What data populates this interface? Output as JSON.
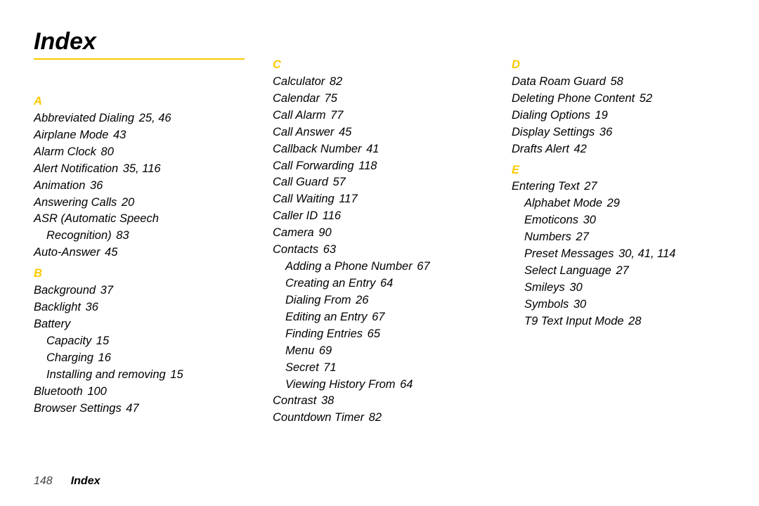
{
  "title": "Index",
  "rule_color": "#fbc900",
  "columns": [
    [
      {
        "type": "letter",
        "text": "A"
      },
      {
        "type": "entry",
        "text": "Abbreviated Dialing",
        "pages": "25, 46"
      },
      {
        "type": "entry",
        "text": "Airplane Mode",
        "pages": "43"
      },
      {
        "type": "entry",
        "text": "Alarm Clock",
        "pages": "80"
      },
      {
        "type": "entry",
        "text": "Alert Notification",
        "pages": "35, 116"
      },
      {
        "type": "entry",
        "text": "Animation",
        "pages": "36"
      },
      {
        "type": "entry",
        "text": "Answering Calls",
        "pages": "20"
      },
      {
        "type": "entry",
        "text": "ASR (Automatic Speech"
      },
      {
        "type": "entry",
        "indent": 1,
        "text": "Recognition)",
        "pages": "83"
      },
      {
        "type": "entry",
        "text": "Auto-Answer",
        "pages": "45"
      },
      {
        "type": "letter",
        "text": "B"
      },
      {
        "type": "entry",
        "text": "Background",
        "pages": "37"
      },
      {
        "type": "entry",
        "text": "Backlight",
        "pages": "36"
      },
      {
        "type": "entry",
        "text": "Battery"
      },
      {
        "type": "entry",
        "indent": 1,
        "text": "Capacity",
        "pages": "15"
      },
      {
        "type": "entry",
        "indent": 1,
        "text": "Charging",
        "pages": "16"
      },
      {
        "type": "entry",
        "indent": 1,
        "text": "Installing and removing",
        "pages": "15"
      },
      {
        "type": "entry",
        "text": "Bluetooth",
        "pages": "100"
      },
      {
        "type": "entry",
        "text": "Browser Settings",
        "pages": "47"
      }
    ],
    [
      {
        "type": "letter",
        "text": "C"
      },
      {
        "type": "entry",
        "text": "Calculator",
        "pages": "82"
      },
      {
        "type": "entry",
        "text": "Calendar",
        "pages": "75"
      },
      {
        "type": "entry",
        "text": "Call Alarm",
        "pages": "77"
      },
      {
        "type": "entry",
        "text": "Call Answer",
        "pages": "45"
      },
      {
        "type": "entry",
        "text": "Callback Number",
        "pages": "41"
      },
      {
        "type": "entry",
        "text": "Call Forwarding",
        "pages": "118"
      },
      {
        "type": "entry",
        "text": "Call Guard",
        "pages": "57"
      },
      {
        "type": "entry",
        "text": "Call Waiting",
        "pages": "117"
      },
      {
        "type": "entry",
        "text": "Caller ID",
        "pages": "116"
      },
      {
        "type": "entry",
        "text": "Camera",
        "pages": "90"
      },
      {
        "type": "entry",
        "text": "Contacts",
        "pages": "63"
      },
      {
        "type": "entry",
        "indent": 1,
        "text": "Adding a Phone Number",
        "pages": "67"
      },
      {
        "type": "entry",
        "indent": 1,
        "text": "Creating an Entry",
        "pages": "64"
      },
      {
        "type": "entry",
        "indent": 1,
        "text": "Dialing From",
        "pages": "26"
      },
      {
        "type": "entry",
        "indent": 1,
        "text": "Editing an Entry",
        "pages": "67"
      },
      {
        "type": "entry",
        "indent": 1,
        "text": "Finding Entries",
        "pages": "65"
      },
      {
        "type": "entry",
        "indent": 1,
        "text": "Menu",
        "pages": "69"
      },
      {
        "type": "entry",
        "indent": 1,
        "text": "Secret",
        "pages": "71"
      },
      {
        "type": "entry",
        "indent": 1,
        "text": "Viewing History From",
        "pages": "64"
      },
      {
        "type": "entry",
        "text": "Contrast",
        "pages": "38"
      },
      {
        "type": "entry",
        "text": "Countdown Timer",
        "pages": "82"
      }
    ],
    [
      {
        "type": "letter",
        "text": "D"
      },
      {
        "type": "entry",
        "text": "Data Roam Guard",
        "pages": "58"
      },
      {
        "type": "entry",
        "text": "Deleting Phone Content",
        "pages": "52"
      },
      {
        "type": "entry",
        "text": "Dialing Options",
        "pages": "19"
      },
      {
        "type": "entry",
        "text": "Display Settings",
        "pages": "36"
      },
      {
        "type": "entry",
        "text": "Drafts Alert",
        "pages": "42"
      },
      {
        "type": "letter",
        "text": "E"
      },
      {
        "type": "entry",
        "text": "Entering Text",
        "pages": "27"
      },
      {
        "type": "entry",
        "indent": 1,
        "text": "Alphabet Mode",
        "pages": "29"
      },
      {
        "type": "entry",
        "indent": 1,
        "text": "Emoticons",
        "pages": "30"
      },
      {
        "type": "entry",
        "indent": 1,
        "text": "Numbers",
        "pages": "27"
      },
      {
        "type": "entry",
        "indent": 1,
        "text": "Preset Messages",
        "pages": "30, 41, 114"
      },
      {
        "type": "entry",
        "indent": 1,
        "text": "Select Language",
        "pages": "27"
      },
      {
        "type": "entry",
        "indent": 1,
        "text": "Smileys",
        "pages": "30"
      },
      {
        "type": "entry",
        "indent": 1,
        "text": "Symbols",
        "pages": "30"
      },
      {
        "type": "entry",
        "indent": 1,
        "text": "T9 Text Input Mode",
        "pages": "28"
      }
    ]
  ],
  "footer": {
    "page": "148",
    "section": "Index"
  }
}
